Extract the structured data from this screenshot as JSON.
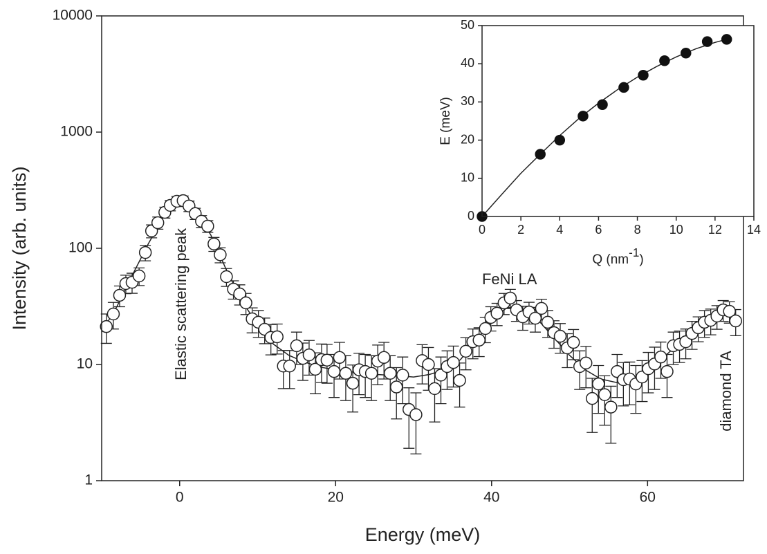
{
  "chart_data": [
    {
      "type": "scatter",
      "xlabel": "Energy (meV)",
      "ylabel": "Intensity (arb. units)",
      "yscale": "log",
      "xlim": [
        -10,
        72.3
      ],
      "ylim": [
        1,
        10000
      ],
      "xticks": [
        0,
        20,
        40,
        60
      ],
      "yticks": [
        1,
        10,
        100,
        1000,
        10000
      ],
      "x": [
        -9.4,
        -8.5,
        -7.7,
        -6.9,
        -6.1,
        -5.2,
        -4.4,
        -3.6,
        -2.8,
        -1.9,
        -1.2,
        -0.35,
        0.45,
        1.2,
        2,
        2.8,
        3.6,
        4.4,
        5.2,
        6,
        6.9,
        7.7,
        8.5,
        9.3,
        10.1,
        10.9,
        11.7,
        12.5,
        13.3,
        14.1,
        15,
        15.8,
        16.6,
        17.4,
        18.2,
        18.9,
        19.8,
        20.5,
        21.3,
        22.2,
        23,
        23.8,
        24.6,
        25.4,
        26.2,
        27,
        27.8,
        28.6,
        29.4,
        30.3,
        31.1,
        31.9,
        32.7,
        33.5,
        34.3,
        35.1,
        35.9,
        36.7,
        37.6,
        38.4,
        39.2,
        39.9,
        40.7,
        41.6,
        42.4,
        43.2,
        44,
        44.8,
        45.6,
        46.4,
        47.2,
        48,
        48.8,
        49.7,
        50.5,
        51.3,
        52.1,
        52.9,
        53.7,
        54.5,
        55.3,
        56.1,
        56.9,
        57.7,
        58.5,
        59.3,
        60.1,
        60.9,
        61.7,
        62.5,
        63.3,
        64.1,
        64.9,
        65.7,
        66.5,
        67.3,
        68.1,
        68.9,
        69.7,
        70.5,
        71.3
      ],
      "series": [
        {
          "color": "#222222",
          "marker": "open-circle",
          "values": [
            21.2,
            27.2,
            39.4,
            49.7,
            51,
            57.8,
            92,
            141,
            166,
            204,
            234,
            254,
            257,
            231,
            199,
            171,
            155,
            109,
            88,
            57,
            44.5,
            40.5,
            33.9,
            24.7,
            23.1,
            20.1,
            17.1,
            17.3,
            9.7,
            9.7,
            14.5,
            11.3,
            12.1,
            9.1,
            11,
            10.9,
            8.7,
            11.5,
            8.4,
            6.9,
            9,
            8.7,
            8.4,
            10.7,
            11.5,
            8.4,
            6.4,
            8.1,
            4.1,
            3.7,
            10.8,
            10,
            6.2,
            8.1,
            9.6,
            10.4,
            7.3,
            13,
            15.7,
            16.2,
            20.4,
            25.4,
            27.6,
            33.9,
            37.3,
            29.5,
            25.7,
            28.3,
            25,
            30.4,
            23.1,
            18.8,
            17.5,
            13.9,
            15.5,
            9.6,
            10.3,
            5.1,
            6.8,
            5.5,
            4.3,
            8.7,
            7.4,
            7.5,
            6.8,
            7.8,
            9.2,
            10.1,
            11.6,
            8.7,
            14.5,
            14.9,
            15.7,
            18.5,
            20.7,
            23.1,
            24,
            26.1,
            29.5,
            28.7,
            23.7
          ],
          "errors": [
            6,
            7,
            8,
            9,
            10,
            10,
            14,
            18,
            20,
            22,
            24,
            25,
            25,
            24,
            22,
            20,
            18,
            15,
            13,
            10,
            8,
            8,
            7,
            6,
            6,
            5,
            5,
            5,
            3.5,
            3.5,
            4.5,
            4,
            4,
            3.5,
            4,
            4,
            3.5,
            4,
            3.5,
            3,
            3.5,
            3.5,
            3.5,
            4,
            4,
            3.5,
            3,
            3.5,
            2.2,
            2,
            4,
            4,
            3,
            3.5,
            3.5,
            4,
            3,
            4,
            4.5,
            4.5,
            5,
            6,
            6,
            7,
            7,
            6,
            6,
            6,
            6,
            6,
            6,
            5,
            5,
            4.5,
            4.5,
            3.5,
            4,
            2.5,
            3,
            2.5,
            2.2,
            3.5,
            3,
            3,
            3,
            3,
            3.5,
            4,
            4,
            3.5,
            4.5,
            4.5,
            4.5,
            5,
            5,
            6,
            6,
            6,
            6,
            6,
            6
          ]
        }
      ],
      "fit": {
        "color": "#222222",
        "x": [
          -10,
          -8,
          -6,
          -4,
          -2,
          0,
          2,
          4,
          6,
          8,
          10,
          12,
          14,
          16,
          18,
          20,
          24,
          28,
          30,
          32,
          34,
          36,
          38,
          40,
          42,
          44,
          46,
          48,
          50,
          52,
          54,
          56,
          58,
          60,
          62,
          64,
          66,
          68,
          70,
          71
        ],
        "y": [
          19,
          32,
          60,
          110,
          190,
          250,
          210,
          130,
          65,
          35,
          22,
          15,
          12,
          10.5,
          9.5,
          9,
          8.3,
          8,
          7.8,
          8.2,
          9,
          11,
          16,
          24,
          31,
          30,
          24,
          17,
          12,
          9,
          7.5,
          7,
          7.5,
          9,
          11.5,
          15,
          19,
          24,
          28,
          29
        ]
      },
      "annotations": [
        {
          "text": "Elastic scattering peak",
          "x": 0.3,
          "y": 33,
          "rotation": -90
        },
        {
          "text": "FeNi LA",
          "x": 42.3,
          "y": 53,
          "rotation": 0
        },
        {
          "text": "diamond TA",
          "x": 70.2,
          "y": 5.9,
          "rotation": -90
        }
      ]
    },
    {
      "type": "scatter",
      "xlabel_parts": [
        "Q (nm",
        "-1",
        ")"
      ],
      "ylabel": "E (meV)",
      "xlim": [
        0,
        14
      ],
      "ylim": [
        0,
        50
      ],
      "xticks": [
        0,
        2,
        4,
        6,
        8,
        10,
        12,
        14
      ],
      "yticks": [
        0,
        10,
        20,
        30,
        40,
        50
      ],
      "x": [
        0,
        3,
        4,
        5.2,
        6.2,
        7.3,
        8.3,
        9.4,
        10.5,
        11.6,
        12.6
      ],
      "series": [
        {
          "color": "#111111",
          "marker": "filled-circle",
          "values": [
            0,
            16.3,
            20,
            26.3,
            29.3,
            33.8,
            37,
            40.8,
            42.8,
            45.8,
            46.4
          ]
        }
      ],
      "fit": {
        "color": "#222222",
        "x": [
          0,
          1,
          2,
          3,
          4,
          5,
          6,
          7,
          8,
          9,
          10,
          11,
          12,
          12.6
        ],
        "y": [
          0,
          5.7,
          11.3,
          16.3,
          21.2,
          25.7,
          29.7,
          33.3,
          36.5,
          39.3,
          41.8,
          43.9,
          45.6,
          46.4
        ]
      }
    }
  ]
}
